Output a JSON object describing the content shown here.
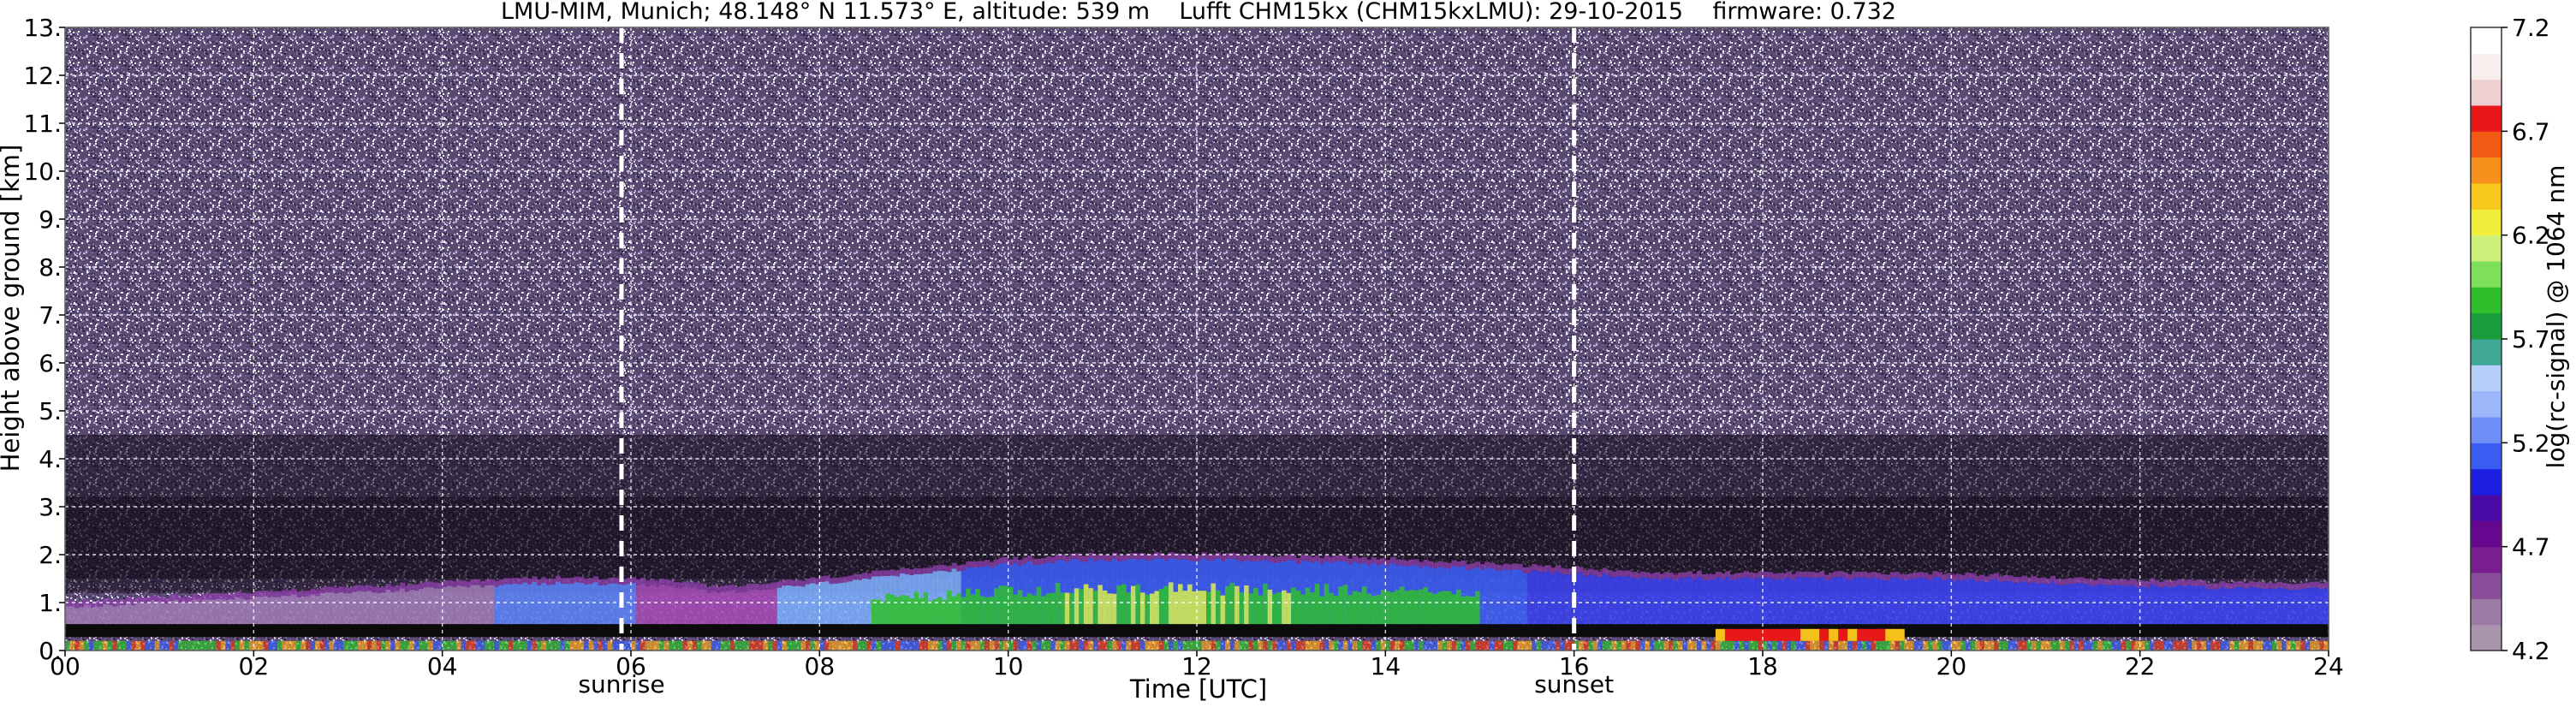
{
  "chart_data": {
    "type": "heatmap",
    "title": "LMU-MIM, Munich; 48.148° N 11.573° E, altitude: 539 m    Lufft CHM15kx (CHM15kxLMU): 29-10-2015    firmware: 0.732",
    "xlabel": "Time [UTC]",
    "ylabel": "Height above ground [km]",
    "xlim": [
      0,
      24
    ],
    "ylim": [
      0,
      13
    ],
    "x_ticks": [
      "00",
      "02",
      "04",
      "06",
      "08",
      "10",
      "12",
      "14",
      "16",
      "18",
      "20",
      "22",
      "24"
    ],
    "x_tick_values": [
      0,
      2,
      4,
      6,
      8,
      10,
      12,
      14,
      16,
      18,
      20,
      22,
      24
    ],
    "y_ticks": [
      "0.",
      "1.",
      "2.",
      "3.",
      "4.",
      "5.",
      "6.",
      "7.",
      "8.",
      "9.",
      "10.",
      "11.",
      "12.",
      "13."
    ],
    "y_tick_values": [
      0,
      1,
      2,
      3,
      4,
      5,
      6,
      7,
      8,
      9,
      10,
      11,
      12,
      13
    ],
    "grid": true,
    "colorbar": {
      "label": "log(rc-signal) @ 1064 nm",
      "range": [
        4.2,
        7.2
      ],
      "ticks": [
        "4.2",
        "4.7",
        "5.2",
        "5.7",
        "6.2",
        "6.7",
        "7.2"
      ],
      "tick_values": [
        4.2,
        4.7,
        5.2,
        5.7,
        6.2,
        6.7,
        7.2
      ],
      "colors": [
        "#a993ad",
        "#9b7aa6",
        "#8a4f9a",
        "#7a1f90",
        "#66088f",
        "#4a0aa6",
        "#1b1ee0",
        "#3b5cf2",
        "#6f8ef8",
        "#9cb6fa",
        "#b7d0fb",
        "#3fa897",
        "#1a9c3a",
        "#2fbf2c",
        "#7ee05a",
        "#cdf07a",
        "#f2ef3c",
        "#f8c81c",
        "#f6901a",
        "#f25a14",
        "#e81818",
        "#efd0d0",
        "#f8eeee",
        "#ffffff"
      ]
    },
    "annotations": [
      {
        "label": "sunrise",
        "x": 5.9
      },
      {
        "label": "sunset",
        "x": 16.0
      }
    ],
    "boundary_layer": {
      "time": [
        0,
        1,
        2,
        3,
        4,
        5,
        6,
        7,
        8,
        9,
        10,
        11,
        12,
        13,
        14,
        15,
        16,
        17,
        18,
        19,
        20,
        21,
        22,
        23,
        24
      ],
      "top_km": [
        0.9,
        1.0,
        1.1,
        1.2,
        1.3,
        1.4,
        1.4,
        1.2,
        1.4,
        1.6,
        1.8,
        1.9,
        1.9,
        1.85,
        1.8,
        1.7,
        1.6,
        1.5,
        1.5,
        1.5,
        1.5,
        1.4,
        1.35,
        1.3,
        1.3
      ]
    }
  }
}
